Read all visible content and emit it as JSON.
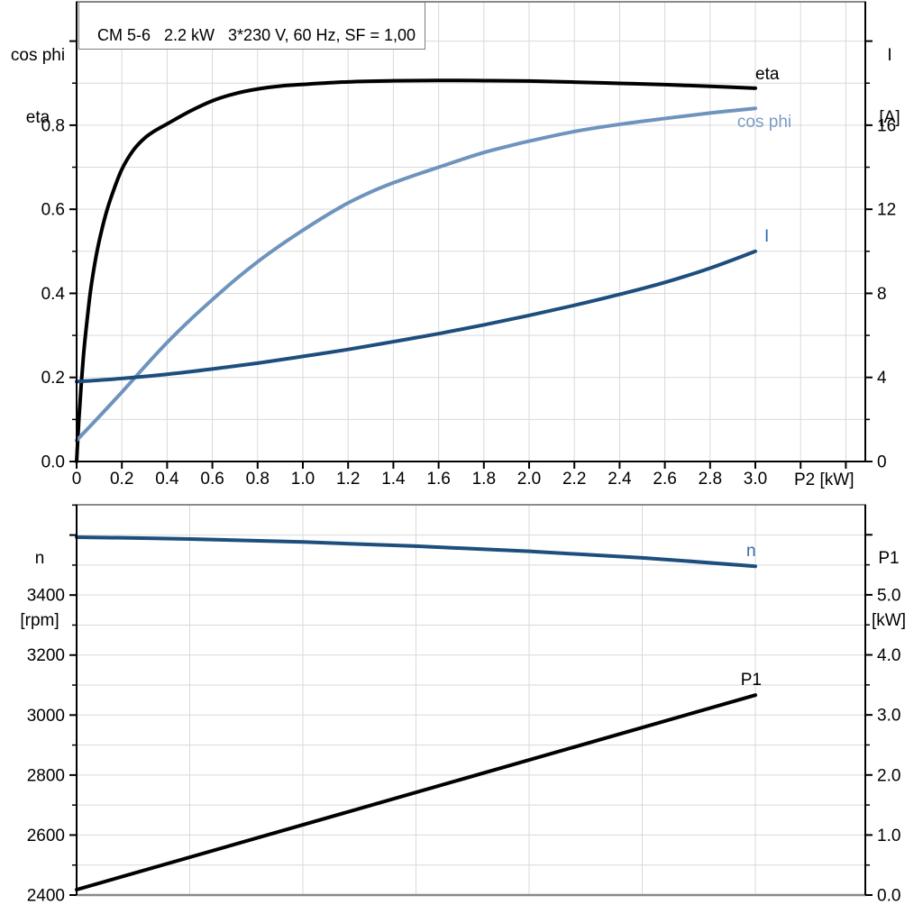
{
  "colors": {
    "background": "#ffffff",
    "grid": "#d9d9d9",
    "frame": "#8a8a8a",
    "axis": "#000000",
    "text": "#000000",
    "black_curve": "#000000",
    "steel_curve": "#6e93bd",
    "steel_label": "#7b9cc4",
    "dark_blue_curve": "#1d4e7d",
    "blue_label": "#2f6cb3"
  },
  "chart_data": [
    {
      "type": "line",
      "title": "CM 5-6   2.2 kW   3*230 V, 60 Hz, SF = 1,00",
      "x_axis": {
        "label": "P2 [kW]",
        "range": [
          0,
          3.486
        ],
        "grid_step": 0.2,
        "ticks": [
          {
            "v": 0,
            "t": "0"
          },
          {
            "v": 0.2,
            "t": "0.2"
          },
          {
            "v": 0.4,
            "t": "0.4"
          },
          {
            "v": 0.6,
            "t": "0.6"
          },
          {
            "v": 0.8,
            "t": "0.8"
          },
          {
            "v": 1.0,
            "t": "1.0"
          },
          {
            "v": 1.2,
            "t": "1.2"
          },
          {
            "v": 1.4,
            "t": "1.4"
          },
          {
            "v": 1.6,
            "t": "1.6"
          },
          {
            "v": 1.8,
            "t": "1.8"
          },
          {
            "v": 2.0,
            "t": "2.0"
          },
          {
            "v": 2.2,
            "t": "2.2"
          },
          {
            "v": 2.4,
            "t": "2.4"
          },
          {
            "v": 2.6,
            "t": "2.6"
          },
          {
            "v": 2.8,
            "t": "2.8"
          },
          {
            "v": 3.0,
            "t": "3.0"
          },
          {
            "v": 3.2,
            "t": ""
          },
          {
            "v": 3.4,
            "t": ""
          }
        ]
      },
      "y_left": {
        "title_lines": [
          "cos phi",
          "eta"
        ],
        "range": [
          0,
          1.0935
        ],
        "grid_step": 0.1,
        "minor_step": 0.1,
        "ticks": [
          {
            "v": 0,
            "t": "0.0"
          },
          {
            "v": 0.2,
            "t": "0.2"
          },
          {
            "v": 0.4,
            "t": "0.4"
          },
          {
            "v": 0.6,
            "t": "0.6"
          },
          {
            "v": 0.8,
            "t": "0.8"
          },
          {
            "v": 1.0,
            "t": ""
          }
        ]
      },
      "y_right": {
        "title_lines": [
          "I",
          "[A]"
        ],
        "range": [
          0,
          21.87
        ],
        "minor_step": 2,
        "ticks": [
          {
            "v": 0,
            "t": "0"
          },
          {
            "v": 4,
            "t": "4"
          },
          {
            "v": 8,
            "t": "8"
          },
          {
            "v": 12,
            "t": "12"
          },
          {
            "v": 16,
            "t": "16"
          },
          {
            "v": 20,
            "t": ""
          }
        ]
      },
      "series": [
        {
          "name": "eta",
          "axis": "left",
          "color": "#000000",
          "width": 4,
          "label": {
            "text": "eta",
            "x": 3.0,
            "y": 0.909,
            "color": "#000000"
          },
          "points": [
            [
              0,
              0
            ],
            [
              0.01,
              0.1
            ],
            [
              0.02,
              0.18
            ],
            [
              0.03,
              0.25
            ],
            [
              0.04,
              0.305
            ],
            [
              0.06,
              0.4
            ],
            [
              0.08,
              0.47
            ],
            [
              0.1,
              0.525
            ],
            [
              0.13,
              0.59
            ],
            [
              0.16,
              0.64
            ],
            [
              0.2,
              0.695
            ],
            [
              0.25,
              0.74
            ],
            [
              0.3,
              0.769
            ],
            [
              0.35,
              0.788
            ],
            [
              0.4,
              0.803
            ],
            [
              0.5,
              0.833
            ],
            [
              0.6,
              0.858
            ],
            [
              0.7,
              0.875
            ],
            [
              0.8,
              0.886
            ],
            [
              0.9,
              0.893
            ],
            [
              1.0,
              0.897
            ],
            [
              1.2,
              0.903
            ],
            [
              1.4,
              0.9055
            ],
            [
              1.6,
              0.9065
            ],
            [
              1.8,
              0.906
            ],
            [
              2.0,
              0.905
            ],
            [
              2.2,
              0.9025
            ],
            [
              2.4,
              0.8995
            ],
            [
              2.6,
              0.8965
            ],
            [
              2.8,
              0.8925
            ],
            [
              3.0,
              0.888
            ]
          ]
        },
        {
          "name": "cos phi",
          "axis": "left",
          "color": "#6e93bd",
          "width": 4,
          "label": {
            "text": "cos phi",
            "x": 2.92,
            "y": 0.795,
            "color": "#7b9cc4"
          },
          "points": [
            [
              0,
              0.05
            ],
            [
              0.1,
              0.107
            ],
            [
              0.2,
              0.165
            ],
            [
              0.3,
              0.225
            ],
            [
              0.4,
              0.283
            ],
            [
              0.5,
              0.336
            ],
            [
              0.6,
              0.385
            ],
            [
              0.7,
              0.432
            ],
            [
              0.8,
              0.475
            ],
            [
              0.9,
              0.514
            ],
            [
              1.0,
              0.55
            ],
            [
              1.1,
              0.584
            ],
            [
              1.2,
              0.615
            ],
            [
              1.3,
              0.641
            ],
            [
              1.4,
              0.663
            ],
            [
              1.5,
              0.682
            ],
            [
              1.6,
              0.7
            ],
            [
              1.7,
              0.718
            ],
            [
              1.8,
              0.735
            ],
            [
              1.9,
              0.749
            ],
            [
              2.0,
              0.762
            ],
            [
              2.2,
              0.785
            ],
            [
              2.4,
              0.802
            ],
            [
              2.6,
              0.816
            ],
            [
              2.8,
              0.829
            ],
            [
              3.0,
              0.84
            ]
          ]
        },
        {
          "name": "I",
          "axis": "right",
          "color": "#1d4e7d",
          "width": 4,
          "label": {
            "text": "I",
            "x": 3.04,
            "y": 10.46,
            "color": "#2f6cb3"
          },
          "points": [
            [
              0,
              3.8
            ],
            [
              0.2,
              3.95
            ],
            [
              0.4,
              4.15
            ],
            [
              0.6,
              4.4
            ],
            [
              0.8,
              4.68
            ],
            [
              1.0,
              5.0
            ],
            [
              1.2,
              5.33
            ],
            [
              1.4,
              5.7
            ],
            [
              1.6,
              6.08
            ],
            [
              1.8,
              6.5
            ],
            [
              2.0,
              6.95
            ],
            [
              2.2,
              7.43
            ],
            [
              2.4,
              7.95
            ],
            [
              2.6,
              8.52
            ],
            [
              2.8,
              9.2
            ],
            [
              3.0,
              10.0
            ]
          ]
        }
      ]
    },
    {
      "type": "line",
      "title": "",
      "x_axis": {
        "label": "",
        "range": [
          0,
          3.486
        ],
        "grid_step": 0.5,
        "ticks": []
      },
      "y_left": {
        "title_lines": [
          "n",
          "[rpm]"
        ],
        "range": [
          2400,
          3701
        ],
        "grid_step": 100,
        "minor_step": 100,
        "ticks": [
          {
            "v": 2400,
            "t": "2400"
          },
          {
            "v": 2600,
            "t": "2600"
          },
          {
            "v": 2800,
            "t": "2800"
          },
          {
            "v": 3000,
            "t": "3000"
          },
          {
            "v": 3200,
            "t": "3200"
          },
          {
            "v": 3400,
            "t": "3400"
          },
          {
            "v": 3600,
            "t": ""
          }
        ]
      },
      "y_right": {
        "title_lines": [
          "P1",
          "[kW]"
        ],
        "range": [
          0,
          6.5
        ],
        "minor_step": 0.5,
        "ticks": [
          {
            "v": 0,
            "t": "0.0"
          },
          {
            "v": 1,
            "t": "1.0"
          },
          {
            "v": 2,
            "t": "2.0"
          },
          {
            "v": 3,
            "t": "3.0"
          },
          {
            "v": 4,
            "t": "4.0"
          },
          {
            "v": 5,
            "t": "5.0"
          },
          {
            "v": 6,
            "t": ""
          }
        ]
      },
      "series": [
        {
          "name": "n",
          "axis": "left",
          "color": "#1d4e7d",
          "width": 4,
          "label": {
            "text": "n",
            "x": 2.96,
            "y": 3530,
            "color": "#2f6cb3"
          },
          "points": [
            [
              0,
              3593
            ],
            [
              0.5,
              3587
            ],
            [
              1.0,
              3577
            ],
            [
              1.5,
              3563
            ],
            [
              2.0,
              3546
            ],
            [
              2.5,
              3524
            ],
            [
              3.0,
              3496
            ]
          ]
        },
        {
          "name": "P1",
          "axis": "right",
          "color": "#000000",
          "width": 4,
          "label": {
            "text": "P1",
            "x": 2.935,
            "y": 3.5,
            "color": "#000000"
          },
          "points": [
            [
              0,
              0.09
            ],
            [
              3.0,
              3.33
            ]
          ]
        }
      ]
    }
  ]
}
